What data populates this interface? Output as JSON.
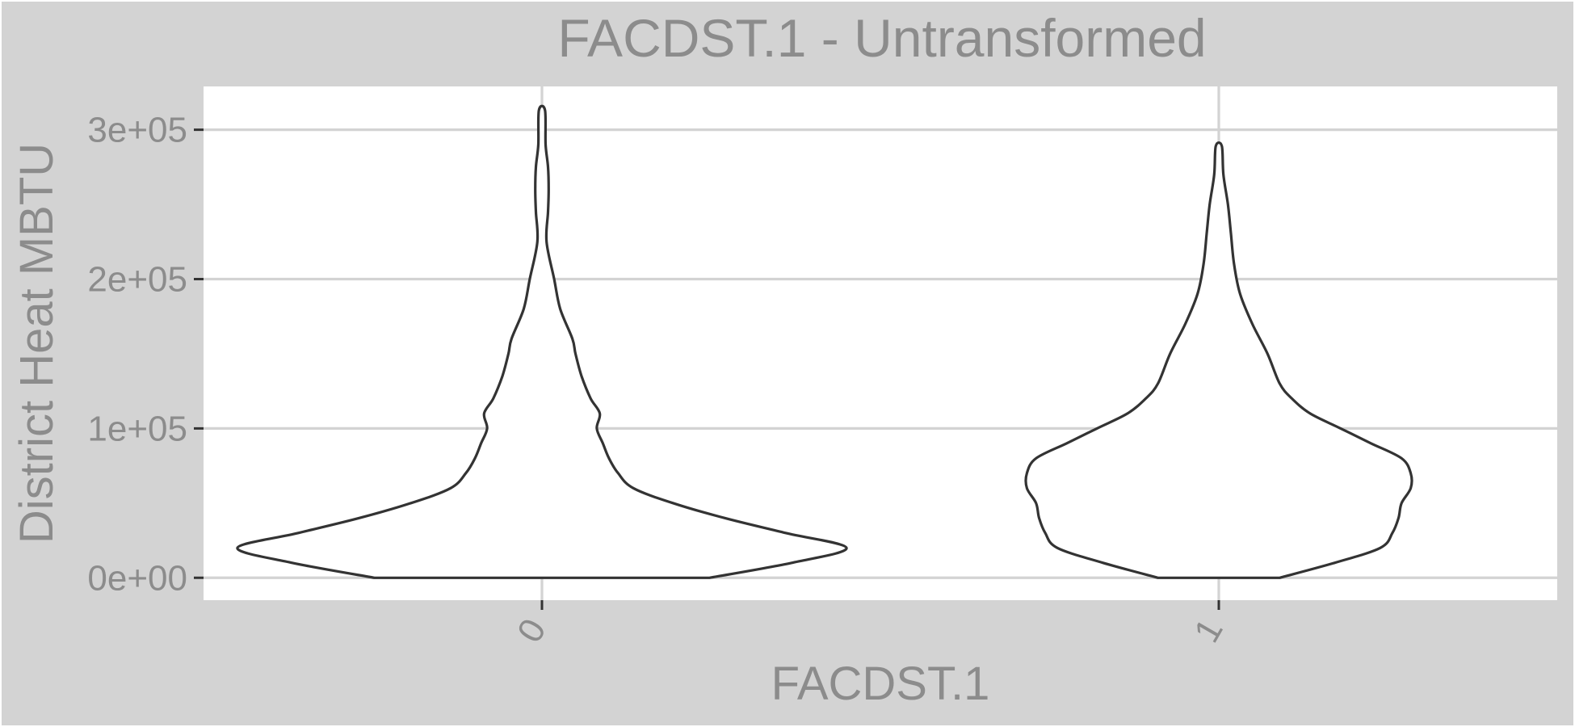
{
  "chart_data": {
    "type": "violin",
    "title": "FACDST.1 - Untransformed",
    "xlabel": "FACDST.1",
    "ylabel": "District Heat MBTU",
    "categories": [
      "0",
      "1"
    ],
    "yticks": [
      {
        "value": 0,
        "label": "0e+00"
      },
      {
        "value": 100000,
        "label": "1e+05"
      },
      {
        "value": 200000,
        "label": "2e+05"
      },
      {
        "value": 300000,
        "label": "3e+05"
      }
    ],
    "ylim": [
      -15000,
      329000
    ],
    "grid": true,
    "legend": "none",
    "violins": [
      {
        "category": "0",
        "min": 0,
        "max": 313000,
        "density": [
          [
            0,
            0.55
          ],
          [
            10000,
            0.82
          ],
          [
            20000,
            1.0
          ],
          [
            30000,
            0.8
          ],
          [
            40000,
            0.6
          ],
          [
            50000,
            0.43
          ],
          [
            60000,
            0.3
          ],
          [
            70000,
            0.25
          ],
          [
            80000,
            0.22
          ],
          [
            90000,
            0.2
          ],
          [
            100000,
            0.18
          ],
          [
            110000,
            0.19
          ],
          [
            120000,
            0.16
          ],
          [
            135000,
            0.13
          ],
          [
            150000,
            0.11
          ],
          [
            160000,
            0.1
          ],
          [
            180000,
            0.06
          ],
          [
            200000,
            0.04
          ],
          [
            225000,
            0.015
          ],
          [
            245000,
            0.02
          ],
          [
            260000,
            0.022
          ],
          [
            275000,
            0.02
          ],
          [
            290000,
            0.012
          ],
          [
            313000,
            0.01
          ]
        ]
      },
      {
        "category": "1",
        "min": 0,
        "max": 289000,
        "density": [
          [
            0,
            0.2
          ],
          [
            10000,
            0.38
          ],
          [
            20000,
            0.53
          ],
          [
            30000,
            0.57
          ],
          [
            40000,
            0.59
          ],
          [
            50000,
            0.6
          ],
          [
            60000,
            0.63
          ],
          [
            70000,
            0.63
          ],
          [
            80000,
            0.6
          ],
          [
            90000,
            0.5
          ],
          [
            100000,
            0.4
          ],
          [
            110000,
            0.3
          ],
          [
            120000,
            0.24
          ],
          [
            130000,
            0.2
          ],
          [
            150000,
            0.16
          ],
          [
            170000,
            0.11
          ],
          [
            190000,
            0.07
          ],
          [
            210000,
            0.05
          ],
          [
            230000,
            0.04
          ],
          [
            250000,
            0.03
          ],
          [
            270000,
            0.015
          ],
          [
            289000,
            0.01
          ]
        ]
      }
    ]
  }
}
